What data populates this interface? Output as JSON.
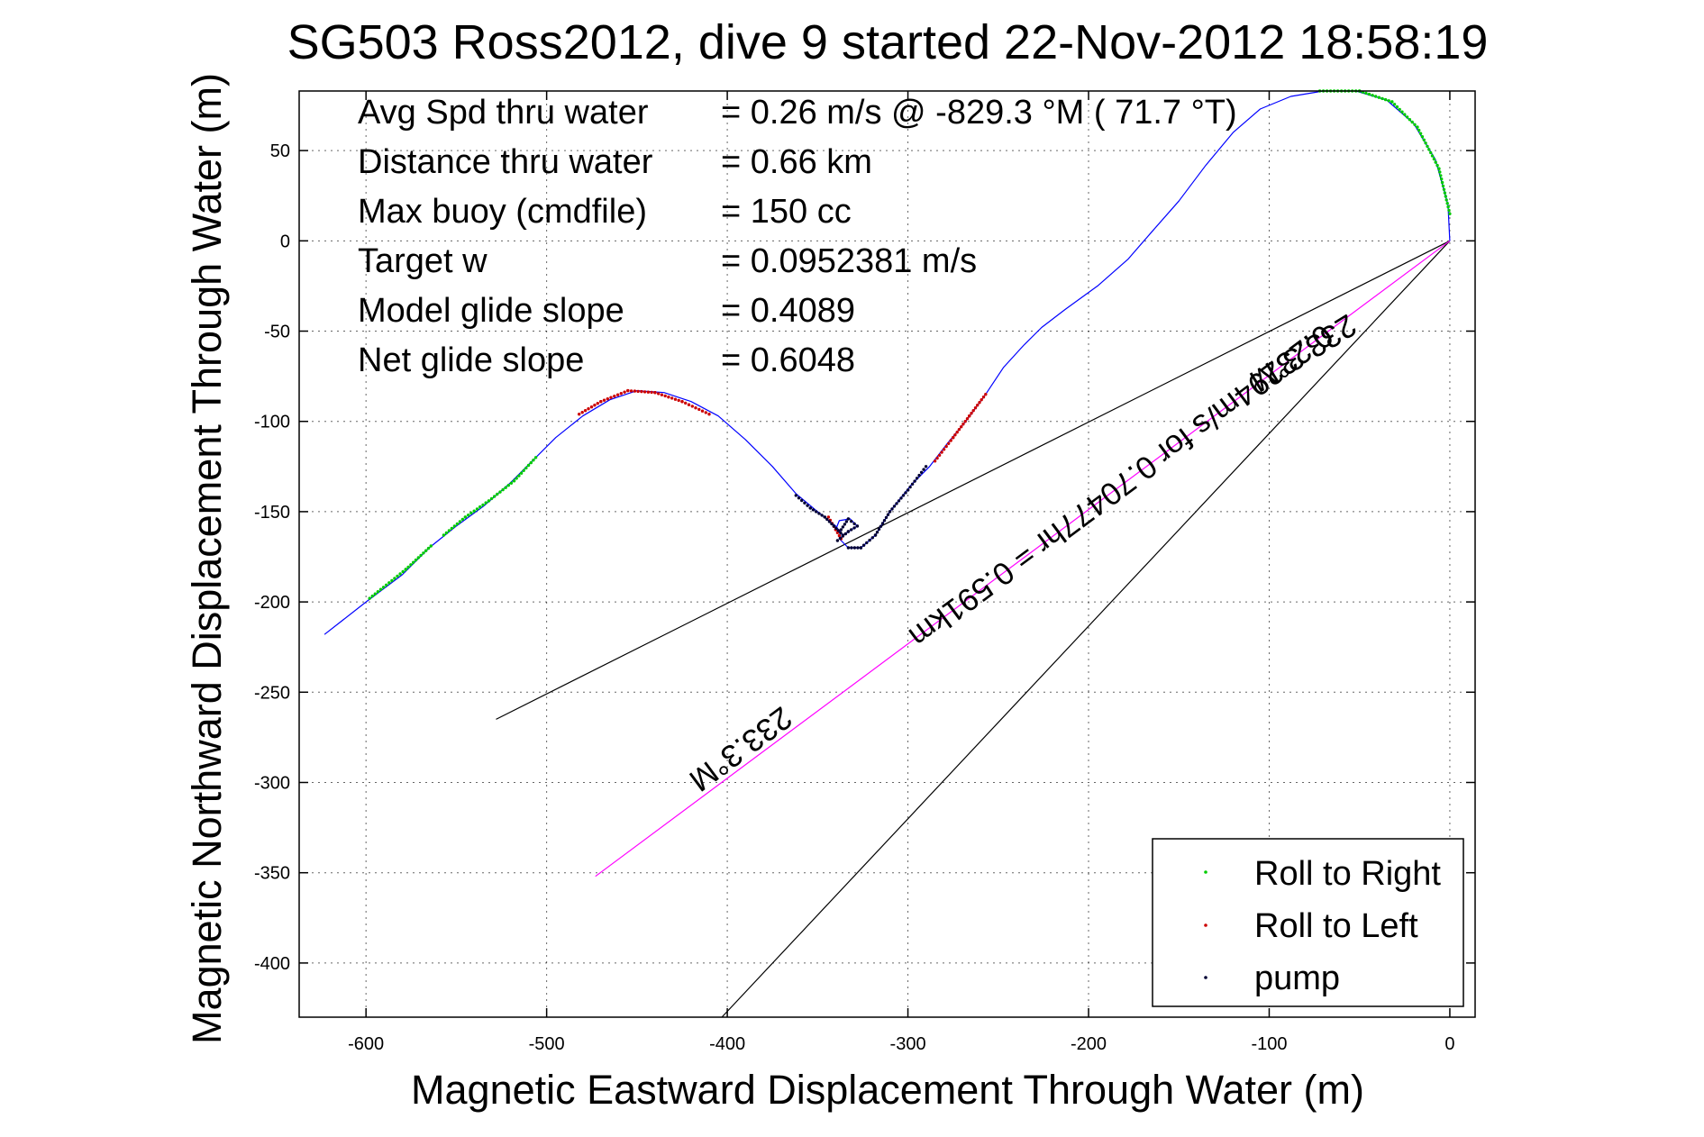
{
  "chart_data": {
    "type": "scatter",
    "title": "SG503 Ross2012, dive 9 started 22-Nov-2012 18:58:19",
    "xlabel": "Magnetic Eastward Displacement Through Water (m)",
    "ylabel": "Magnetic Northward Displacement Through Water (m)",
    "xlim": [
      -637,
      14
    ],
    "ylim": [
      -430,
      83
    ],
    "xticks": [
      -600,
      -500,
      -400,
      -300,
      -200,
      -100,
      0
    ],
    "yticks": [
      50,
      0,
      -50,
      -100,
      -150,
      -200,
      -250,
      -300,
      -350,
      -400
    ],
    "grid": true,
    "legend_position": "bottom-right",
    "colors": {
      "track": "#0000ff",
      "roll_right": "#00cc00",
      "roll_left": "#cc0000",
      "pump": "#000033",
      "current_line": "#ff00ff",
      "bracket": "#000000"
    },
    "info": [
      {
        "label": "Avg Spd thru water",
        "value": "=  0.26 m/s @ -829.3 °M ( 71.7 °T)"
      },
      {
        "label": "Distance thru water",
        "value": "=  0.66 km"
      },
      {
        "label": "Max buoy (cmdfile)",
        "value": "= 150 cc"
      },
      {
        "label": "Target w",
        "value": "= 0.0952381 m/s"
      },
      {
        "label": "Model glide slope",
        "value": "= 0.4089"
      },
      {
        "label": "Net glide slope",
        "value": "= 0.6048"
      }
    ],
    "annotations": {
      "bracket_label_upper": "233.3°M",
      "current_label": "0.23294m/s for 0.70477hr = 0.591km",
      "current_label_lower": "233.3°M"
    },
    "legend": [
      "Roll to Right",
      "Roll to Left",
      "pump"
    ],
    "track": [
      [
        -623,
        -218
      ],
      [
        -600,
        -200
      ],
      [
        -580,
        -185
      ],
      [
        -565,
        -170
      ],
      [
        -550,
        -158
      ],
      [
        -535,
        -147
      ],
      [
        -520,
        -134
      ],
      [
        -507,
        -121
      ],
      [
        -495,
        -109
      ],
      [
        -480,
        -97
      ],
      [
        -465,
        -88
      ],
      [
        -450,
        -83
      ],
      [
        -435,
        -84
      ],
      [
        -420,
        -89
      ],
      [
        -405,
        -97
      ],
      [
        -390,
        -110
      ],
      [
        -375,
        -125
      ],
      [
        -362,
        -140
      ],
      [
        -350,
        -150
      ],
      [
        -340,
        -158
      ],
      [
        -336,
        -163
      ],
      [
        -340,
        -160
      ],
      [
        -338,
        -155
      ],
      [
        -332,
        -154
      ],
      [
        -328,
        -158
      ],
      [
        -333,
        -161
      ],
      [
        -338,
        -165
      ],
      [
        -333,
        -170
      ],
      [
        -326,
        -170
      ],
      [
        -318,
        -163
      ],
      [
        -310,
        -150
      ],
      [
        -298,
        -135
      ],
      [
        -288,
        -125
      ],
      [
        -278,
        -112
      ],
      [
        -268,
        -100
      ],
      [
        -257,
        -85
      ],
      [
        -247,
        -70
      ],
      [
        -236,
        -58
      ],
      [
        -226,
        -48
      ],
      [
        -213,
        -38
      ],
      [
        -195,
        -25
      ],
      [
        -178,
        -10
      ],
      [
        -165,
        5
      ],
      [
        -150,
        22
      ],
      [
        -135,
        42
      ],
      [
        -120,
        60
      ],
      [
        -105,
        73
      ],
      [
        -88,
        80
      ],
      [
        -70,
        83
      ],
      [
        -52,
        83
      ],
      [
        -35,
        78
      ],
      [
        -20,
        65
      ],
      [
        -8,
        45
      ],
      [
        -1,
        20
      ],
      [
        0,
        0
      ]
    ],
    "roll_right_segments": [
      [
        [
          -598,
          -198
        ],
        [
          -578,
          -182
        ],
        [
          -564,
          -169
        ]
      ],
      [
        [
          -557,
          -163
        ],
        [
          -545,
          -153
        ],
        [
          -532,
          -144
        ],
        [
          -518,
          -133
        ],
        [
          -506,
          -120
        ]
      ],
      [
        [
          -72,
          83
        ],
        [
          -50,
          83
        ],
        [
          -32,
          77
        ],
        [
          -18,
          63
        ],
        [
          -6,
          40
        ],
        [
          0,
          15
        ]
      ]
    ],
    "roll_left_segments": [
      [
        [
          -482,
          -96
        ],
        [
          -470,
          -89
        ],
        [
          -455,
          -83
        ],
        [
          -440,
          -84
        ],
        [
          -425,
          -89
        ],
        [
          -410,
          -96
        ]
      ],
      [
        [
          -344,
          -153
        ],
        [
          -340,
          -160
        ],
        [
          -337,
          -165
        ]
      ],
      [
        [
          -285,
          -122
        ],
        [
          -275,
          -109
        ],
        [
          -266,
          -97
        ],
        [
          -257,
          -85
        ]
      ]
    ],
    "pump_segments": [
      [
        [
          -362,
          -141
        ],
        [
          -354,
          -148
        ],
        [
          -346,
          -153
        ],
        [
          -341,
          -158
        ],
        [
          -336,
          -163
        ]
      ],
      [
        [
          -337,
          -160
        ],
        [
          -333,
          -154
        ],
        [
          -328,
          -158
        ],
        [
          -333,
          -161
        ],
        [
          -339,
          -166
        ]
      ],
      [
        [
          -333,
          -170
        ],
        [
          -326,
          -170
        ],
        [
          -318,
          -163
        ],
        [
          -310,
          -150
        ],
        [
          -300,
          -138
        ],
        [
          -290,
          -125
        ]
      ]
    ],
    "current_line": [
      [
        -473,
        -352
      ],
      [
        0,
        0
      ]
    ],
    "bracket_lines": [
      [
        [
          -528,
          -265
        ],
        [
          0,
          0
        ]
      ],
      [
        [
          -403,
          -430
        ],
        [
          0,
          0
        ]
      ]
    ]
  }
}
